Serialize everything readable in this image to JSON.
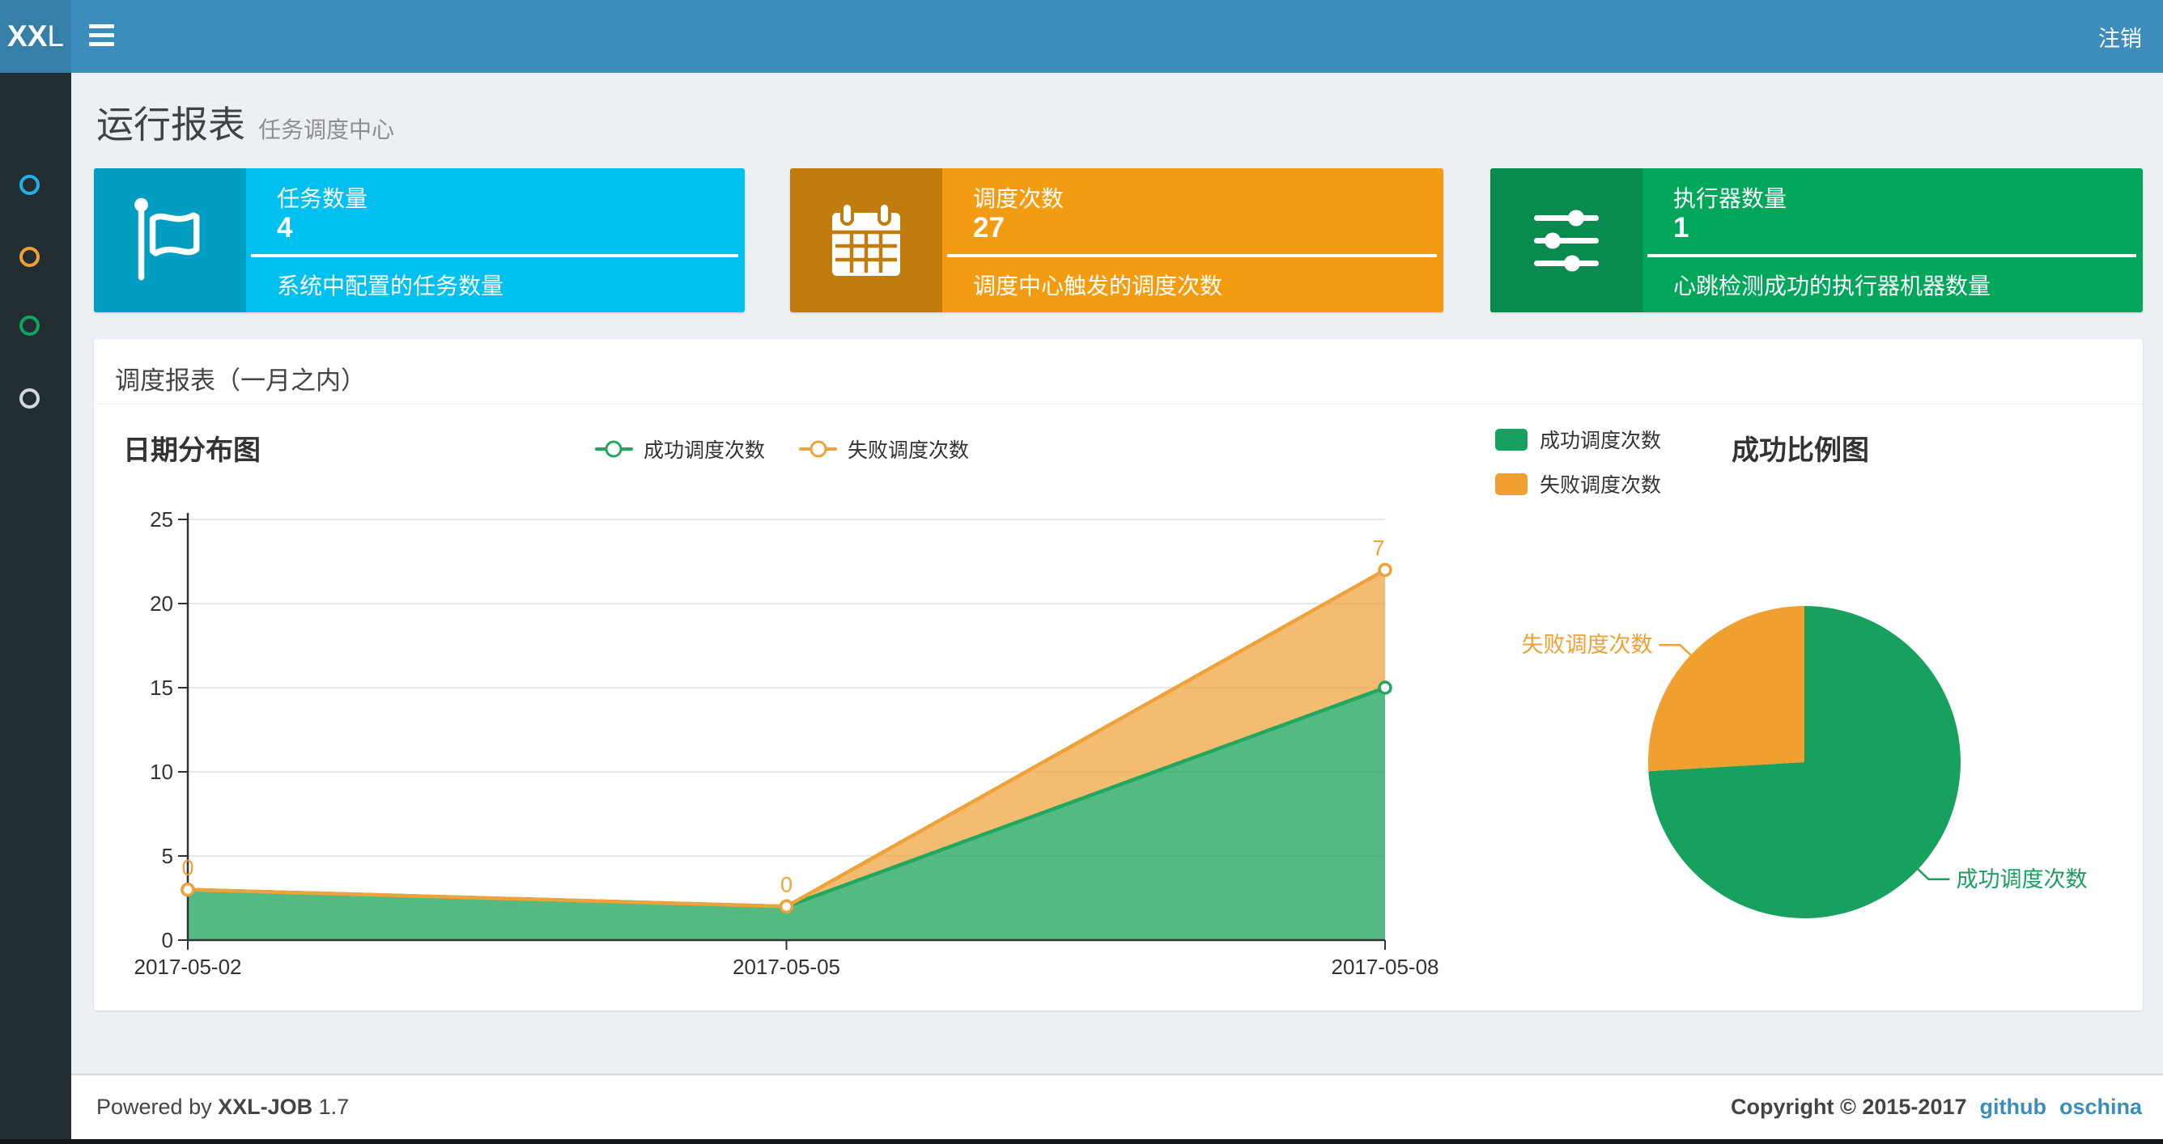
{
  "navbar": {
    "logo_bold": "XX",
    "logo_light": "L",
    "logout_label": "注销"
  },
  "sidebar": {
    "items": [
      {
        "name": "report",
        "color": "#1eb0e6"
      },
      {
        "name": "jobs",
        "color": "#f0a030"
      },
      {
        "name": "logs",
        "color": "#0ba55d"
      },
      {
        "name": "help",
        "color": "#d4d9e0"
      }
    ]
  },
  "page_header": {
    "title": "运行报表",
    "subtitle": "任务调度中心"
  },
  "info_boxes": [
    {
      "title": "任务数量",
      "value": "4",
      "desc": "系统中配置的任务数量",
      "color": "#00c0ef",
      "icon": "flag-icon"
    },
    {
      "title": "调度次数",
      "value": "27",
      "desc": "调度中心触发的调度次数",
      "color": "#f39c12",
      "icon": "calendar-icon"
    },
    {
      "title": "执行器数量",
      "value": "1",
      "desc": "心跳检测成功的执行器机器数量",
      "color": "#00a65a",
      "icon": "sliders-icon"
    }
  ],
  "panel": {
    "title": "调度报表（一月之内）"
  },
  "chart_data": [
    {
      "type": "area",
      "title": "日期分布图",
      "x": [
        "2017-05-02",
        "2017-05-05",
        "2017-05-08"
      ],
      "series": [
        {
          "name": "成功调度次数",
          "values": [
            3,
            2,
            15
          ],
          "color": "#22a75f"
        },
        {
          "name": "失败调度次数",
          "values": [
            0,
            0,
            7
          ],
          "color": "#f0a23a",
          "point_labels": [
            "0",
            "0",
            "7"
          ]
        }
      ],
      "stacked": true,
      "ylim": [
        0,
        25
      ],
      "yticks": [
        0,
        5,
        10,
        15,
        20,
        25
      ],
      "grid": true,
      "legend_position": "top-center",
      "colors": {
        "axis": "#333333",
        "grid": "#e0e0e0",
        "success_fill": "rgba(34,167,95,0.78)",
        "fail_fill": "rgba(240,162,58,0.72)"
      }
    },
    {
      "type": "pie",
      "title": "成功比例图",
      "slices": [
        {
          "label": "成功调度次数",
          "value": 20,
          "color": "#17a05e"
        },
        {
          "label": "失败调度次数",
          "value": 7,
          "color": "#f0a030"
        }
      ],
      "legend_position": "top-left",
      "start_angle": "12-oclock-clockwise"
    }
  ],
  "footer": {
    "powered_prefix": "Powered by",
    "brand": "XXL-JOB",
    "version": "1.7",
    "copyright": "Copyright © 2015-2017",
    "links": [
      {
        "label": "github"
      },
      {
        "label": "oschina"
      }
    ]
  }
}
